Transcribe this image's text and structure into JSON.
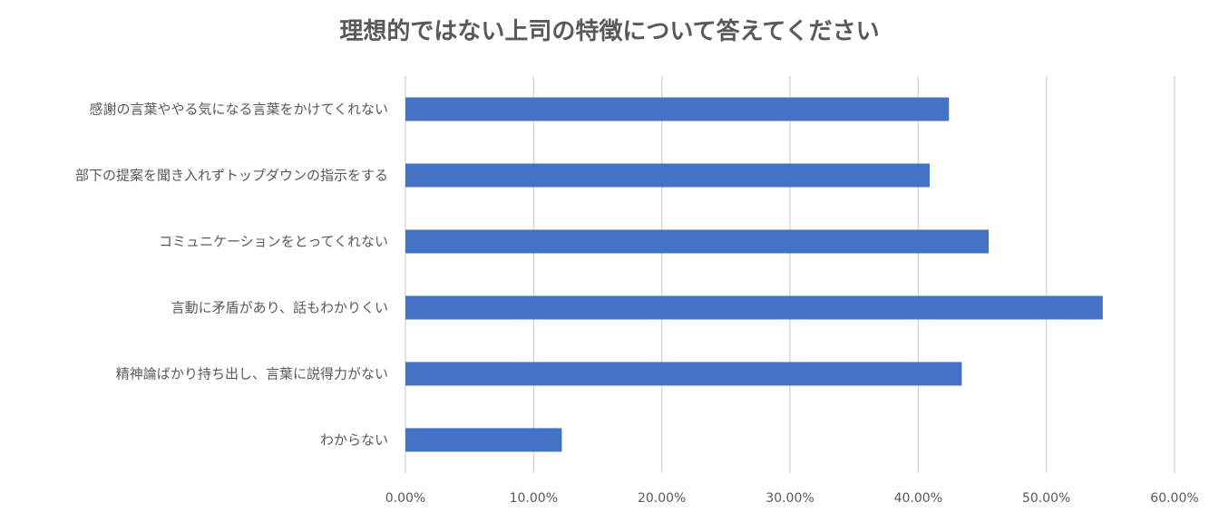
{
  "chart_data": {
    "type": "bar",
    "orientation": "horizontal",
    "title": "理想的ではない上司の特徴について答えてください",
    "categories": [
      "感謝の言葉ややる気になる言葉をかけてくれない",
      "部下の提案を聞き入れずトップダウンの指示をする",
      "コミュニケーションをとってくれない",
      "言動に矛盾があり、話もわかりくい",
      "精神論ばかり持ち出し、言葉に説得力がない",
      "わからない"
    ],
    "values": [
      42.4,
      40.9,
      45.5,
      54.4,
      43.4,
      12.2
    ],
    "xlim": [
      0,
      60
    ],
    "x_ticks": [
      "0.00%",
      "10.00%",
      "20.00%",
      "30.00%",
      "40.00%",
      "50.00%",
      "60.00%"
    ],
    "grid": "vertical",
    "bar_color": "#4472C4",
    "grid_color": "#D9D9D9",
    "text_color": "#595959"
  }
}
